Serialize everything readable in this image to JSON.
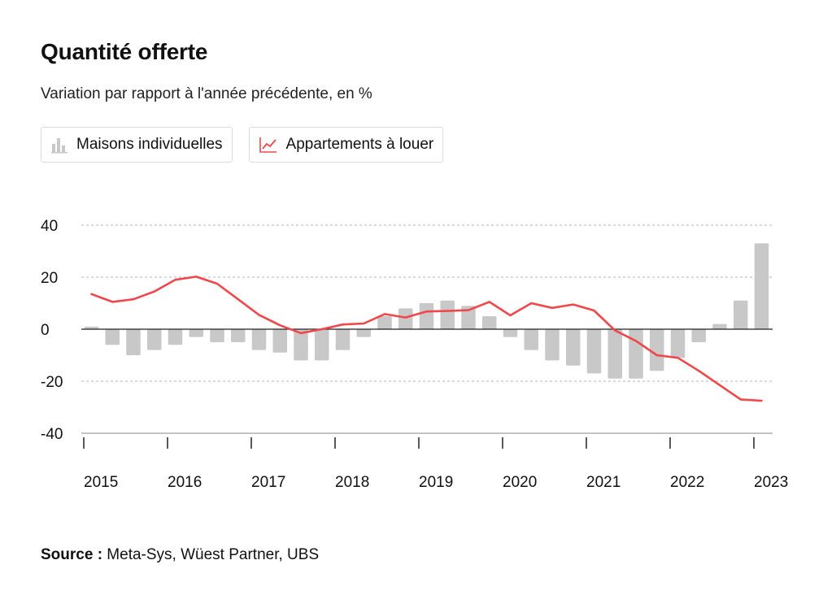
{
  "header": {
    "title": "Quantité offerte",
    "subtitle": "Variation par rapport à l'année précédente, en %"
  },
  "legend": {
    "items": [
      {
        "label": "Maisons individuelles",
        "icon": "bar-chart-icon",
        "color": "#c8c8c8"
      },
      {
        "label": "Appartements à louer",
        "icon": "line-chart-icon",
        "color": "#f0474a"
      }
    ]
  },
  "chart_data": {
    "type": "bar",
    "ylim": [
      -40,
      40
    ],
    "yticks": [
      40,
      20,
      0,
      -20,
      -40
    ],
    "ytick_labels": [
      "40",
      "20",
      "0",
      "-20",
      "-40"
    ],
    "year_labels": [
      "2015",
      "2016",
      "2017",
      "2018",
      "2019",
      "2020",
      "2021",
      "2022",
      "2023"
    ],
    "grid": true,
    "colors": {
      "bars": "#c8c8c8",
      "line": "#f0474a"
    },
    "series": [
      {
        "name": "Maisons individuelles",
        "type": "bar",
        "x": [
          "2015-Q1",
          "2015-Q2",
          "2015-Q3",
          "2015-Q4",
          "2016-Q1",
          "2016-Q2",
          "2016-Q3",
          "2016-Q4",
          "2017-Q1",
          "2017-Q2",
          "2017-Q3",
          "2017-Q4",
          "2018-Q1",
          "2018-Q2",
          "2018-Q3",
          "2018-Q4",
          "2019-Q1",
          "2019-Q2",
          "2019-Q3",
          "2019-Q4",
          "2020-Q1",
          "2020-Q2",
          "2020-Q3",
          "2020-Q4",
          "2021-Q1",
          "2021-Q2",
          "2021-Q3",
          "2021-Q4",
          "2022-Q1",
          "2022-Q2",
          "2022-Q3",
          "2022-Q4",
          "2023-Q1"
        ],
        "values": [
          1,
          -6,
          -10,
          -8,
          -6,
          -3,
          -5,
          -5,
          -8,
          -9,
          -12,
          -12,
          -8,
          -3,
          5,
          8,
          10,
          11,
          9,
          5,
          -3,
          -8,
          -12,
          -14,
          -17,
          -19,
          -19,
          -16,
          -11,
          -5,
          2,
          11,
          33
        ]
      },
      {
        "name": "Appartements à louer",
        "type": "line",
        "x": [
          "2015-Q1",
          "2015-Q2",
          "2015-Q3",
          "2015-Q4",
          "2016-Q1",
          "2016-Q2",
          "2016-Q3",
          "2016-Q4",
          "2017-Q1",
          "2017-Q2",
          "2017-Q3",
          "2017-Q4",
          "2018-Q1",
          "2018-Q2",
          "2018-Q3",
          "2018-Q4",
          "2019-Q1",
          "2019-Q2",
          "2019-Q3",
          "2019-Q4",
          "2020-Q1",
          "2020-Q2",
          "2020-Q3",
          "2020-Q4",
          "2021-Q1",
          "2021-Q2",
          "2021-Q3",
          "2021-Q4",
          "2022-Q1",
          "2022-Q2",
          "2022-Q3",
          "2022-Q4",
          "2023-Q1"
        ],
        "values": [
          13.5,
          10.5,
          11.5,
          14.5,
          19,
          20.2,
          17.5,
          11.5,
          5.5,
          1.5,
          -1.5,
          0,
          1.8,
          2.2,
          5.8,
          4.5,
          6.8,
          7,
          7.3,
          10.5,
          5.3,
          10,
          8.2,
          9.5,
          7.2,
          -0.5,
          -4.5,
          -10,
          -11,
          -16,
          -21.5,
          -27,
          -27.5
        ]
      }
    ]
  },
  "footer": {
    "source_label": "Source :",
    "source_text": " Meta-Sys, Wüest Partner, UBS"
  }
}
